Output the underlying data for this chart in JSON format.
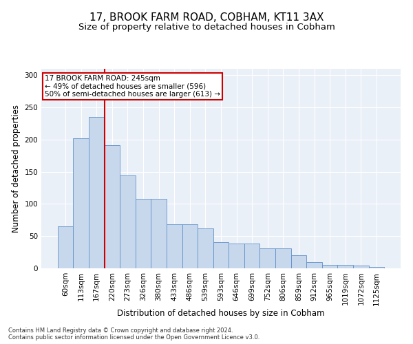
{
  "title1": "17, BROOK FARM ROAD, COBHAM, KT11 3AX",
  "title2": "Size of property relative to detached houses in Cobham",
  "xlabel": "Distribution of detached houses by size in Cobham",
  "ylabel": "Number of detached properties",
  "categories": [
    "60sqm",
    "113sqm",
    "167sqm",
    "220sqm",
    "273sqm",
    "326sqm",
    "380sqm",
    "433sqm",
    "486sqm",
    "539sqm",
    "593sqm",
    "646sqm",
    "699sqm",
    "752sqm",
    "806sqm",
    "859sqm",
    "912sqm",
    "965sqm",
    "1019sqm",
    "1072sqm",
    "1125sqm"
  ],
  "values": [
    65,
    202,
    235,
    191,
    144,
    108,
    108,
    68,
    68,
    62,
    41,
    38,
    38,
    31,
    31,
    20,
    10,
    5,
    5,
    4,
    2
  ],
  "bar_color": "#c8d8ec",
  "bar_edge_color": "#6090c8",
  "vline_color": "#cc0000",
  "vline_pos": 2.5,
  "annotation_text": "17 BROOK FARM ROAD: 245sqm\n← 49% of detached houses are smaller (596)\n50% of semi-detached houses are larger (613) →",
  "annotation_box_facecolor": "#ffffff",
  "annotation_box_edgecolor": "#cc0000",
  "footnote": "Contains HM Land Registry data © Crown copyright and database right 2024.\nContains public sector information licensed under the Open Government Licence v3.0.",
  "ylim": [
    0,
    310
  ],
  "yticks": [
    0,
    50,
    100,
    150,
    200,
    250,
    300
  ],
  "bg_color": "#eaf0f8",
  "grid_color": "#ffffff",
  "title1_fontsize": 11,
  "title2_fontsize": 9.5,
  "xlabel_fontsize": 8.5,
  "ylabel_fontsize": 8.5,
  "annot_fontsize": 7.5,
  "tick_fontsize": 7.5,
  "footnote_fontsize": 6.0
}
